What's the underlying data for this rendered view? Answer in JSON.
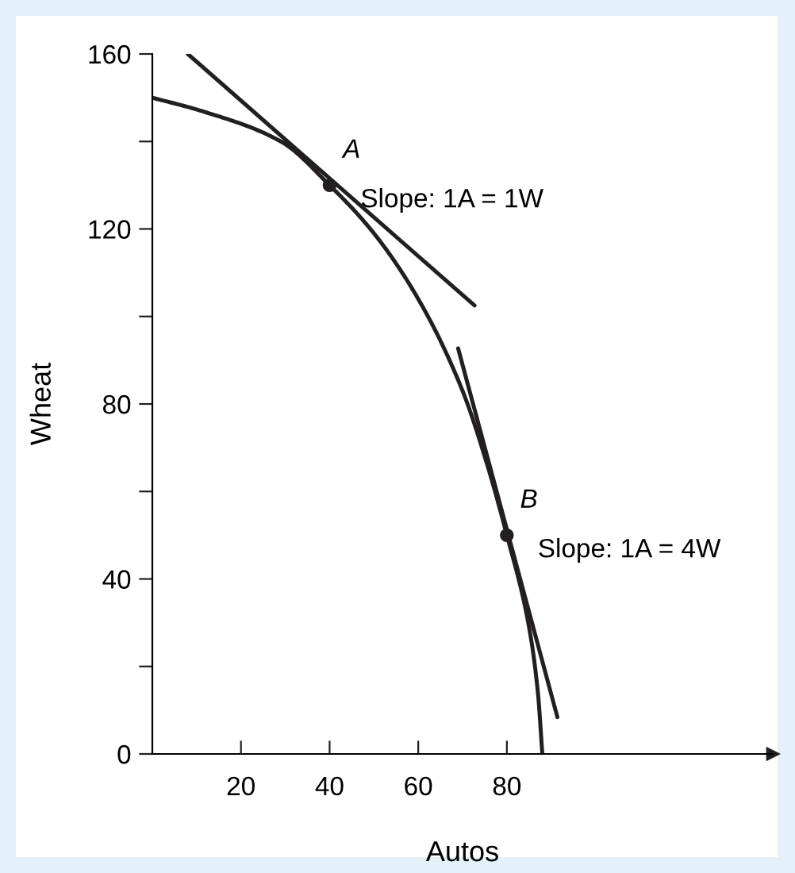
{
  "chart_data": {
    "type": "line",
    "xlabel": "Autos",
    "ylabel": "Wheat",
    "xlim": [
      0,
      140
    ],
    "ylim": [
      0,
      160
    ],
    "xticks": [
      20,
      40,
      60,
      80
    ],
    "yticks": [
      0,
      {
        "value": 20,
        "label": null
      },
      40,
      {
        "value": 60,
        "label": null
      },
      80,
      {
        "value": 100,
        "label": null
      },
      120,
      {
        "value": 140,
        "label": null
      },
      160
    ],
    "grid": false,
    "legend": false,
    "line_style": "solid",
    "series": [
      {
        "marker": "none",
        "color": "#231f20",
        "x": [
          0,
          11,
          29,
          40,
          50,
          60,
          70,
          75,
          80,
          85,
          87,
          88
        ],
        "values": [
          150,
          147,
          140,
          130,
          119,
          104,
          83,
          68,
          50,
          29,
          14,
          0
        ]
      },
      {
        "marker": "none",
        "color": "#231f20",
        "x": [
          8,
          72.7
        ],
        "values": [
          160,
          102.5
        ]
      },
      {
        "marker": "none",
        "color": "#231f20",
        "x": [
          69,
          91.4
        ],
        "values": [
          92.7,
          8.4
        ]
      },
      {
        "type": "scatter",
        "marker": "circle",
        "color": "#231f20",
        "x": [
          40,
          80
        ],
        "values": [
          130,
          50
        ]
      }
    ],
    "annotations": [
      "A",
      "Slope: 1A = 1W",
      "B",
      "Slope: 1A = 4W"
    ]
  }
}
